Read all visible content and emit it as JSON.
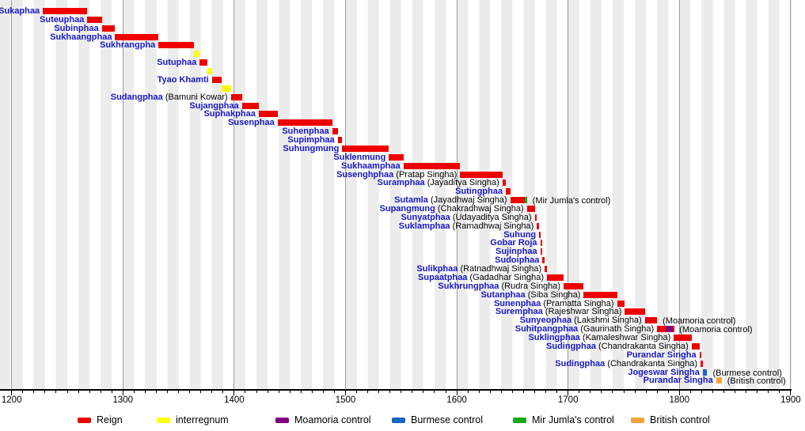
{
  "chart_data": {
    "type": "timeline",
    "xlabel": "",
    "ylabel": "",
    "x_axis": {
      "range": [
        1190,
        1901
      ],
      "major_tick_step": 100,
      "minor_tick_step": 10,
      "tick_labels": [
        "1200",
        "1300",
        "1400",
        "1500",
        "1600",
        "1700",
        "1800",
        "1900"
      ],
      "tick_label_years": [
        1200,
        1300,
        1400,
        1500,
        1600,
        1700,
        1800,
        1900
      ]
    },
    "colors": {
      "reign": "#ee0000",
      "interregnum": "#ffff00",
      "moamoria": "#800080",
      "burmese": "#1666c4",
      "mirjumla": "#18a818",
      "british": "#f4a240",
      "label_blue": "#1616c8",
      "gridline": "#9a9a9a",
      "stripe": "#ececec"
    },
    "legend": [
      {
        "key": "reign",
        "label": "Reign"
      },
      {
        "key": "interregnum",
        "label": "interregnum"
      },
      {
        "key": "moamoria",
        "label": "Moamoria control"
      },
      {
        "key": "burmese",
        "label": "Burmese control"
      },
      {
        "key": "mirjumla",
        "label": "Mir Jumla's control"
      },
      {
        "key": "british",
        "label": "British control"
      }
    ],
    "rows": [
      {
        "name": "Sukaphaa",
        "segments": [
          {
            "kind": "reign",
            "start": 1228,
            "end": 1268
          }
        ]
      },
      {
        "name": "Suteuphaa",
        "segments": [
          {
            "kind": "reign",
            "start": 1268,
            "end": 1281
          }
        ]
      },
      {
        "name": "Subinphaa",
        "segments": [
          {
            "kind": "reign",
            "start": 1281,
            "end": 1293
          }
        ]
      },
      {
        "name": "Sukhaangphaa",
        "segments": [
          {
            "kind": "reign",
            "start": 1293,
            "end": 1332
          }
        ]
      },
      {
        "name": "Sukhrangpha",
        "segments": [
          {
            "kind": "reign",
            "start": 1332,
            "end": 1364
          }
        ]
      },
      {
        "name": "",
        "segments": [
          {
            "kind": "interregnum",
            "start": 1364,
            "end": 1369
          }
        ]
      },
      {
        "name": "Sutuphaa",
        "segments": [
          {
            "kind": "reign",
            "start": 1369,
            "end": 1376
          }
        ]
      },
      {
        "name": "",
        "segments": [
          {
            "kind": "interregnum",
            "start": 1376,
            "end": 1380
          }
        ]
      },
      {
        "name": "Tyao Khamti",
        "segments": [
          {
            "kind": "reign",
            "start": 1380,
            "end": 1389
          }
        ]
      },
      {
        "name": "",
        "segments": [
          {
            "kind": "interregnum",
            "start": 1389,
            "end": 1397
          }
        ]
      },
      {
        "name": "Sudangphaa",
        "paren": "(Bamuni Kowar)",
        "segments": [
          {
            "kind": "reign",
            "start": 1397,
            "end": 1407
          }
        ]
      },
      {
        "name": "Sujangphaa",
        "segments": [
          {
            "kind": "reign",
            "start": 1407,
            "end": 1422
          }
        ]
      },
      {
        "name": "Suphakphaa",
        "segments": [
          {
            "kind": "reign",
            "start": 1422,
            "end": 1439
          }
        ]
      },
      {
        "name": "Susenphaa",
        "segments": [
          {
            "kind": "reign",
            "start": 1439,
            "end": 1488
          }
        ]
      },
      {
        "name": "Suhenphaa",
        "segments": [
          {
            "kind": "reign",
            "start": 1488,
            "end": 1493
          }
        ]
      },
      {
        "name": "Supimphaa",
        "segments": [
          {
            "kind": "reign",
            "start": 1493,
            "end": 1497
          }
        ]
      },
      {
        "name": "Suhungmung",
        "segments": [
          {
            "kind": "reign",
            "start": 1497,
            "end": 1539
          }
        ]
      },
      {
        "name": "Suklenmung",
        "segments": [
          {
            "kind": "reign",
            "start": 1539,
            "end": 1552
          }
        ]
      },
      {
        "name": "Sukhaamphaa",
        "segments": [
          {
            "kind": "reign",
            "start": 1552,
            "end": 1603
          }
        ]
      },
      {
        "name": "Susenghphaa",
        "paren": "(Pratap Singha)",
        "segments": [
          {
            "kind": "reign",
            "start": 1603,
            "end": 1641
          }
        ]
      },
      {
        "name": "Suramphaa",
        "paren": "(Jayaditya Singha)",
        "segments": [
          {
            "kind": "reign",
            "start": 1641,
            "end": 1644
          }
        ]
      },
      {
        "name": "Sutingphaa",
        "segments": [
          {
            "kind": "reign",
            "start": 1644,
            "end": 1648
          }
        ]
      },
      {
        "name": "Sutamla",
        "paren": "(Jayadhwaj Singha)",
        "segments": [
          {
            "kind": "reign",
            "start": 1648,
            "end": 1661
          },
          {
            "kind": "mirjumla",
            "start": 1661,
            "end": 1663
          }
        ],
        "note": "(Mir Jumla's control)"
      },
      {
        "name": "Supangmung",
        "paren": "(Chakradhwaj Singha)",
        "segments": [
          {
            "kind": "reign",
            "start": 1663,
            "end": 1670
          }
        ]
      },
      {
        "name": "Sunyatphaa",
        "paren": "(Udayaditya Singha)",
        "segments": [
          {
            "kind": "reign",
            "start": 1670,
            "end": 1672
          }
        ]
      },
      {
        "name": "Suklamphaa",
        "paren": "(Ramadhwaj Singha)",
        "segments": [
          {
            "kind": "reign",
            "start": 1672,
            "end": 1674
          }
        ]
      },
      {
        "name": "Suhung",
        "segments": [
          {
            "kind": "reign",
            "start": 1674,
            "end": 1675
          }
        ]
      },
      {
        "name": "Gobar Roja",
        "segments": [
          {
            "kind": "reign",
            "start": 1675,
            "end": 1675.6
          }
        ]
      },
      {
        "name": "Sujinphaa",
        "segments": [
          {
            "kind": "reign",
            "start": 1675,
            "end": 1677
          }
        ]
      },
      {
        "name": "Sudoiphaa",
        "segments": [
          {
            "kind": "reign",
            "start": 1677,
            "end": 1679
          }
        ]
      },
      {
        "name": "Sulikphaa",
        "paren": "(Ratnadhwaj Singha)",
        "segments": [
          {
            "kind": "reign",
            "start": 1679,
            "end": 1681
          }
        ]
      },
      {
        "name": "Supaatphaa",
        "paren": "(Gadadhar Singha)",
        "segments": [
          {
            "kind": "reign",
            "start": 1681,
            "end": 1696
          }
        ]
      },
      {
        "name": "Sukhrungphaa",
        "paren": "(Rudra Singha)",
        "segments": [
          {
            "kind": "reign",
            "start": 1696,
            "end": 1714
          }
        ]
      },
      {
        "name": "Sutanphaa",
        "paren": "(Siba Singha)",
        "segments": [
          {
            "kind": "reign",
            "start": 1714,
            "end": 1744
          }
        ]
      },
      {
        "name": "Sunenphaa",
        "paren": "(Pramatta Singha)",
        "segments": [
          {
            "kind": "reign",
            "start": 1744,
            "end": 1751
          }
        ]
      },
      {
        "name": "Suremphaa",
        "paren": "(Rajeshwar Singha)",
        "segments": [
          {
            "kind": "reign",
            "start": 1751,
            "end": 1769
          }
        ]
      },
      {
        "name": "Sunyeophaa",
        "paren": "(Lakshmi Singha)",
        "segments": [
          {
            "kind": "moamoria",
            "start": 1769,
            "end": 1770
          },
          {
            "kind": "reign",
            "start": 1770,
            "end": 1780
          }
        ],
        "note": "(Moamoria control)"
      },
      {
        "name": "Suhitpangphaa",
        "paren": "(Gaurinath Singha)",
        "segments": [
          {
            "kind": "reign",
            "start": 1780,
            "end": 1788
          },
          {
            "kind": "moamoria",
            "start": 1788,
            "end": 1794
          },
          {
            "kind": "reign",
            "start": 1794,
            "end": 1795
          }
        ],
        "note": "(Moamoria control)"
      },
      {
        "name": "Suklingphaa",
        "paren": "(Kamaleshwar Singha)",
        "segments": [
          {
            "kind": "reign",
            "start": 1795,
            "end": 1811
          }
        ]
      },
      {
        "name": "Sudingphaa",
        "paren": "(Chandrakanta Singha)",
        "segments": [
          {
            "kind": "reign",
            "start": 1811,
            "end": 1818
          }
        ]
      },
      {
        "name": "Purandar Singha",
        "segments": [
          {
            "kind": "reign",
            "start": 1818,
            "end": 1819
          }
        ]
      },
      {
        "name": "Sudingphaa",
        "paren": "(Chandrakanta Singha)",
        "segments": [
          {
            "kind": "reign",
            "start": 1819,
            "end": 1821
          }
        ]
      },
      {
        "name": "Jogeswar Singha",
        "segments": [
          {
            "kind": "burmese",
            "start": 1821,
            "end": 1825
          }
        ],
        "note": "(Burmese control)"
      },
      {
        "name": "Purandar Singha",
        "segments": [
          {
            "kind": "british",
            "start": 1833,
            "end": 1838
          }
        ],
        "note": "(British control)"
      }
    ]
  }
}
